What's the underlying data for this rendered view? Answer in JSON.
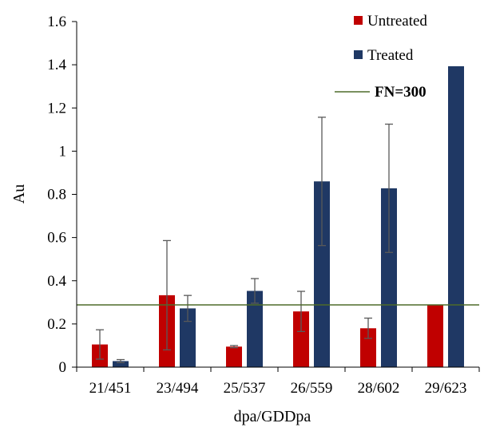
{
  "chart_data": {
    "type": "bar",
    "categories": [
      "21/451",
      "23/494",
      "25/537",
      "26/559",
      "28/602",
      "29/623"
    ],
    "series": [
      {
        "name": "Untreated",
        "color": "#c00000",
        "values": [
          0.105,
          0.333,
          0.095,
          0.258,
          0.18,
          0.29
        ],
        "errors": [
          0.068,
          0.253,
          0.005,
          0.093,
          0.047,
          null
        ]
      },
      {
        "name": "Treated",
        "color": "#1f3864",
        "values": [
          0.028,
          0.272,
          0.353,
          0.86,
          0.828,
          1.393
        ],
        "errors": [
          0.007,
          0.06,
          0.057,
          0.297,
          0.297,
          null
        ]
      }
    ],
    "reference_line": {
      "label": "FN=300",
      "value": 0.288,
      "color": "#4e6b2a"
    },
    "xlabel": "dpa/GDDpa",
    "ylabel": "Au",
    "ylim": [
      0,
      1.6
    ],
    "yticks": [
      "0",
      "0.2",
      "0.4",
      "0.6",
      "0.8",
      "1",
      "1.2",
      "1.4",
      "1.6"
    ],
    "legend_position": "top-right",
    "grid": false
  }
}
